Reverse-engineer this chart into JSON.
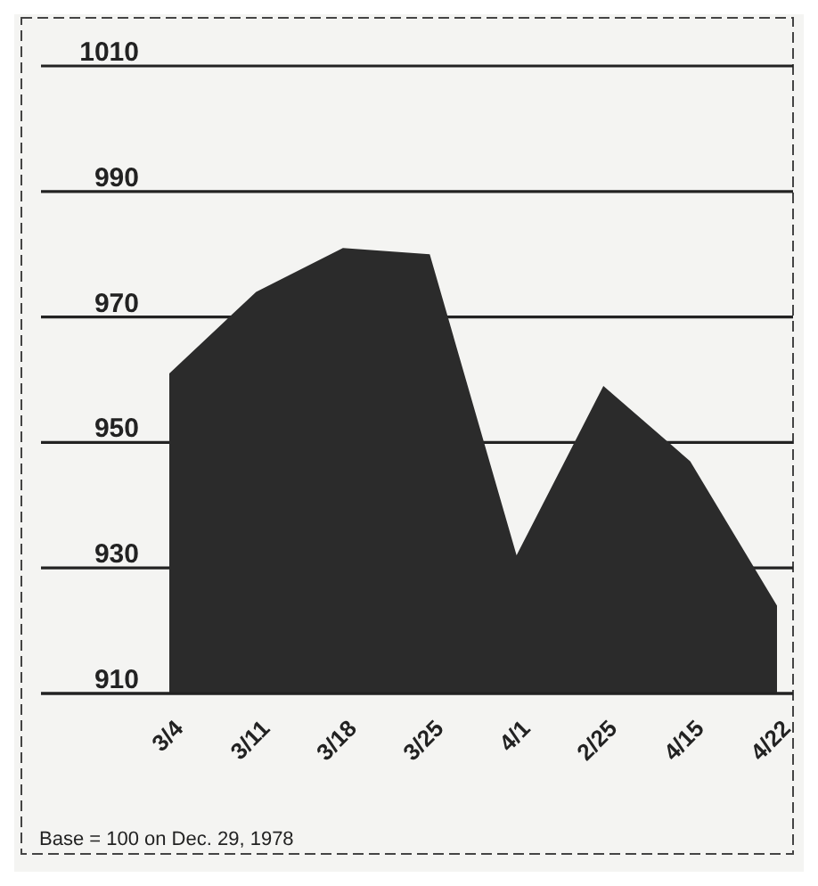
{
  "chart_data": {
    "type": "area",
    "categories": [
      "3/4",
      "3/11",
      "3/18",
      "3/25",
      "4/1",
      "2/25",
      "4/15",
      "4/22"
    ],
    "values": [
      961,
      974,
      981,
      980,
      932,
      959,
      947,
      924
    ],
    "color": "#2b2b2b",
    "ylim": [
      910,
      1010
    ],
    "yticks": [
      910,
      930,
      950,
      970,
      990,
      1010
    ],
    "grid": "y",
    "annotations": [
      "Base = 100 on Dec. 29, 1978"
    ]
  }
}
